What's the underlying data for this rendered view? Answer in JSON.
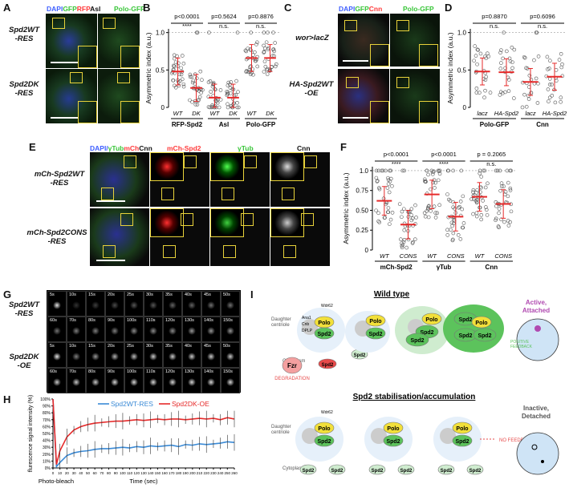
{
  "panels": {
    "A": {
      "letter": "A",
      "title_parts": [
        {
          "t": "DAPI",
          "c": "#4060ff"
        },
        {
          "t": "GFP",
          "c": "#39c639"
        },
        {
          "t": "RFP",
          "c": "#ff3b3b"
        },
        {
          "t": "Asl",
          "c": "#111111"
        }
      ],
      "right_title": "Polo-GFP",
      "rows": [
        "Spd2WT\n-RES",
        "Spd2DK\n-RES"
      ]
    },
    "B": {
      "letter": "B",
      "ylabel": "Asymmetric index (a.u.)",
      "groups": [
        "RFP-Spd2",
        "Asl",
        "Polo-GFP"
      ],
      "pvals": [
        "p<0.0001",
        "p=0.5624",
        "p=0.8876"
      ],
      "sig": [
        "****",
        "n.s.",
        "n.s."
      ],
      "ticks": [
        "0",
        "0.5",
        "1.0"
      ]
    },
    "C": {
      "letter": "C",
      "title_parts": [
        {
          "t": "DAPI",
          "c": "#4060ff"
        },
        {
          "t": "GFP",
          "c": "#39c639"
        },
        {
          "t": "Cnn",
          "c": "#ff3b3b"
        }
      ],
      "right_title": "Polo-GFP",
      "rows": [
        "wor>lacZ",
        "HA-Spd2WT\n-OE"
      ]
    },
    "D": {
      "letter": "D",
      "ylabel": "Asymmetric index (a.u.)",
      "groups": [
        "Polo-GFP",
        "Cnn"
      ],
      "pvals": [
        "p=0.8870",
        "p=0.6096"
      ],
      "sig": [
        "n.s.",
        "n.s."
      ],
      "ticks": [
        "0",
        "0.5",
        "1.0"
      ]
    },
    "E": {
      "letter": "E",
      "title_parts": [
        {
          "t": "DAPI/",
          "c": "#4060ff"
        },
        {
          "t": "γTub",
          "c": "#39c639"
        },
        {
          "t": "mCh",
          "c": "#ff3b3b"
        },
        {
          "t": "Cnn",
          "c": "#111111"
        }
      ],
      "col2": "mCh-Spd2",
      "col3": "γTub",
      "col4": "Cnn",
      "rows": [
        "mCh-Spd2WT\n-RES",
        "mCh-Spd2CONS\n-RES"
      ]
    },
    "F": {
      "letter": "F",
      "ylabel": "Asymmetric index (a.u.)",
      "groups": [
        "mCh-Spd2",
        "γTub",
        "Cnn"
      ],
      "pvals": [
        "p<0.0001",
        "p<0.0001",
        "p = 0.2065"
      ],
      "sig": [
        "****",
        "****",
        "n.s."
      ],
      "ticks": [
        "0",
        "0.25",
        "0.50",
        "0.75",
        "1.0"
      ]
    },
    "G": {
      "letter": "G",
      "rows": [
        "Spd2WT\n-RES",
        "Spd2DK\n-OE"
      ],
      "times_top": [
        "5s",
        "10s",
        "15s",
        "20s",
        "25s",
        "30s",
        "35s",
        "40s",
        "45s",
        "50s"
      ],
      "times_bot": [
        "60s",
        "70s",
        "80s",
        "90s",
        "100s",
        "110s",
        "120s",
        "130s",
        "140s",
        "150s"
      ]
    },
    "H": {
      "letter": "H",
      "ylabel": "flurescence signal intensity (%)",
      "xlabel": "Time (sec)",
      "bleach": "Photo-bleach"
    },
    "I": {
      "letter": "I",
      "wt_title": "Wild type",
      "stab_title": "Spd2 stabilisation/accumulation",
      "active": "Active,\nAttached",
      "inactive": "Inactive,\nDetached",
      "daughter": "Daughter\ncentriole",
      "cytoplasm": "Cytoplasm",
      "fzr": "Fzr",
      "degradation": "DEGRADATION",
      "positive": "POSITIVE\nFEEDBACK",
      "nofeedback": "NO FEEDBACK",
      "polo": "Polo",
      "spd2": "Spd2",
      "cnn": "Cnn",
      "p": "P",
      "wdr62": "Wdr62",
      "ana1": "Ana1",
      "cnb": "Cnb",
      "dplp": "DPLP"
    }
  },
  "chart_data": [
    {
      "type": "scatter",
      "panel": "B",
      "ylabel": "Asymmetric index (a.u.)",
      "ylim": [
        0,
        1.05
      ],
      "categories": [
        "WT",
        "DK",
        "WT",
        "DK",
        "WT",
        "DK"
      ],
      "groups": [
        "RFP-Spd2",
        "Asl",
        "Polo-GFP"
      ],
      "means": [
        0.48,
        0.26,
        0.13,
        0.13,
        0.66,
        0.66
      ],
      "pvalues": [
        "p<0.0001",
        "p=0.5624",
        "p=0.8876"
      ]
    },
    {
      "type": "scatter",
      "panel": "D",
      "ylabel": "Asymmetric index (a.u.)",
      "ylim": [
        0,
        1.05
      ],
      "categories": [
        "lacz",
        "HA-Spd2",
        "lacz",
        "HA-Spd2"
      ],
      "groups": [
        "Polo-GFP",
        "Cnn"
      ],
      "means": [
        0.48,
        0.47,
        0.34,
        0.41
      ],
      "pvalues": [
        "p=0.8870",
        "p=0.6096"
      ]
    },
    {
      "type": "scatter",
      "panel": "F",
      "ylabel": "Asymmetric index (a.u.)",
      "ylim": [
        0,
        1.05
      ],
      "categories": [
        "WT",
        "CONS",
        "WT",
        "CONS",
        "WT",
        "CONS"
      ],
      "groups": [
        "mCh-Spd2",
        "γTub",
        "Cnn"
      ],
      "means": [
        0.62,
        0.32,
        0.7,
        0.42,
        0.67,
        0.58
      ],
      "pvalues": [
        "p<0.0001",
        "p<0.0001",
        "p = 0.2065"
      ]
    },
    {
      "type": "line",
      "panel": "H",
      "xlabel": "Time (sec)",
      "ylabel": "flurescence signal intensity (%)",
      "xlim": [
        0,
        260
      ],
      "ylim": [
        0,
        100
      ],
      "x": [
        0,
        5,
        10,
        20,
        30,
        40,
        50,
        60,
        70,
        80,
        90,
        100,
        110,
        120,
        130,
        140,
        150,
        160,
        170,
        180,
        190,
        200,
        210,
        220,
        230,
        240,
        250,
        260
      ],
      "series": [
        {
          "name": "Spd2WT-RES",
          "color": "#3a8ad6",
          "values": [
            100,
            2,
            8,
            18,
            22,
            24,
            25,
            27,
            28,
            28,
            29,
            30,
            29,
            31,
            30,
            32,
            31,
            32,
            33,
            31,
            34,
            33,
            35,
            34,
            35,
            36,
            38,
            37
          ]
        },
        {
          "name": "Spd2DK-OE",
          "color": "#e62a2a",
          "values": [
            100,
            5,
            25,
            45,
            55,
            60,
            63,
            65,
            66,
            67,
            68,
            68,
            69,
            70,
            69,
            70,
            71,
            70,
            71,
            71,
            70,
            71,
            72,
            71,
            72,
            70,
            73,
            71
          ]
        }
      ],
      "xticks": [
        0,
        10,
        20,
        30,
        40,
        50,
        60,
        70,
        80,
        90,
        100,
        110,
        120,
        130,
        140,
        150,
        160,
        170,
        180,
        190,
        200,
        210,
        220,
        230,
        240,
        250,
        260
      ],
      "yticks": [
        0,
        10,
        20,
        30,
        40,
        50,
        60,
        70,
        80,
        90,
        100
      ]
    }
  ]
}
